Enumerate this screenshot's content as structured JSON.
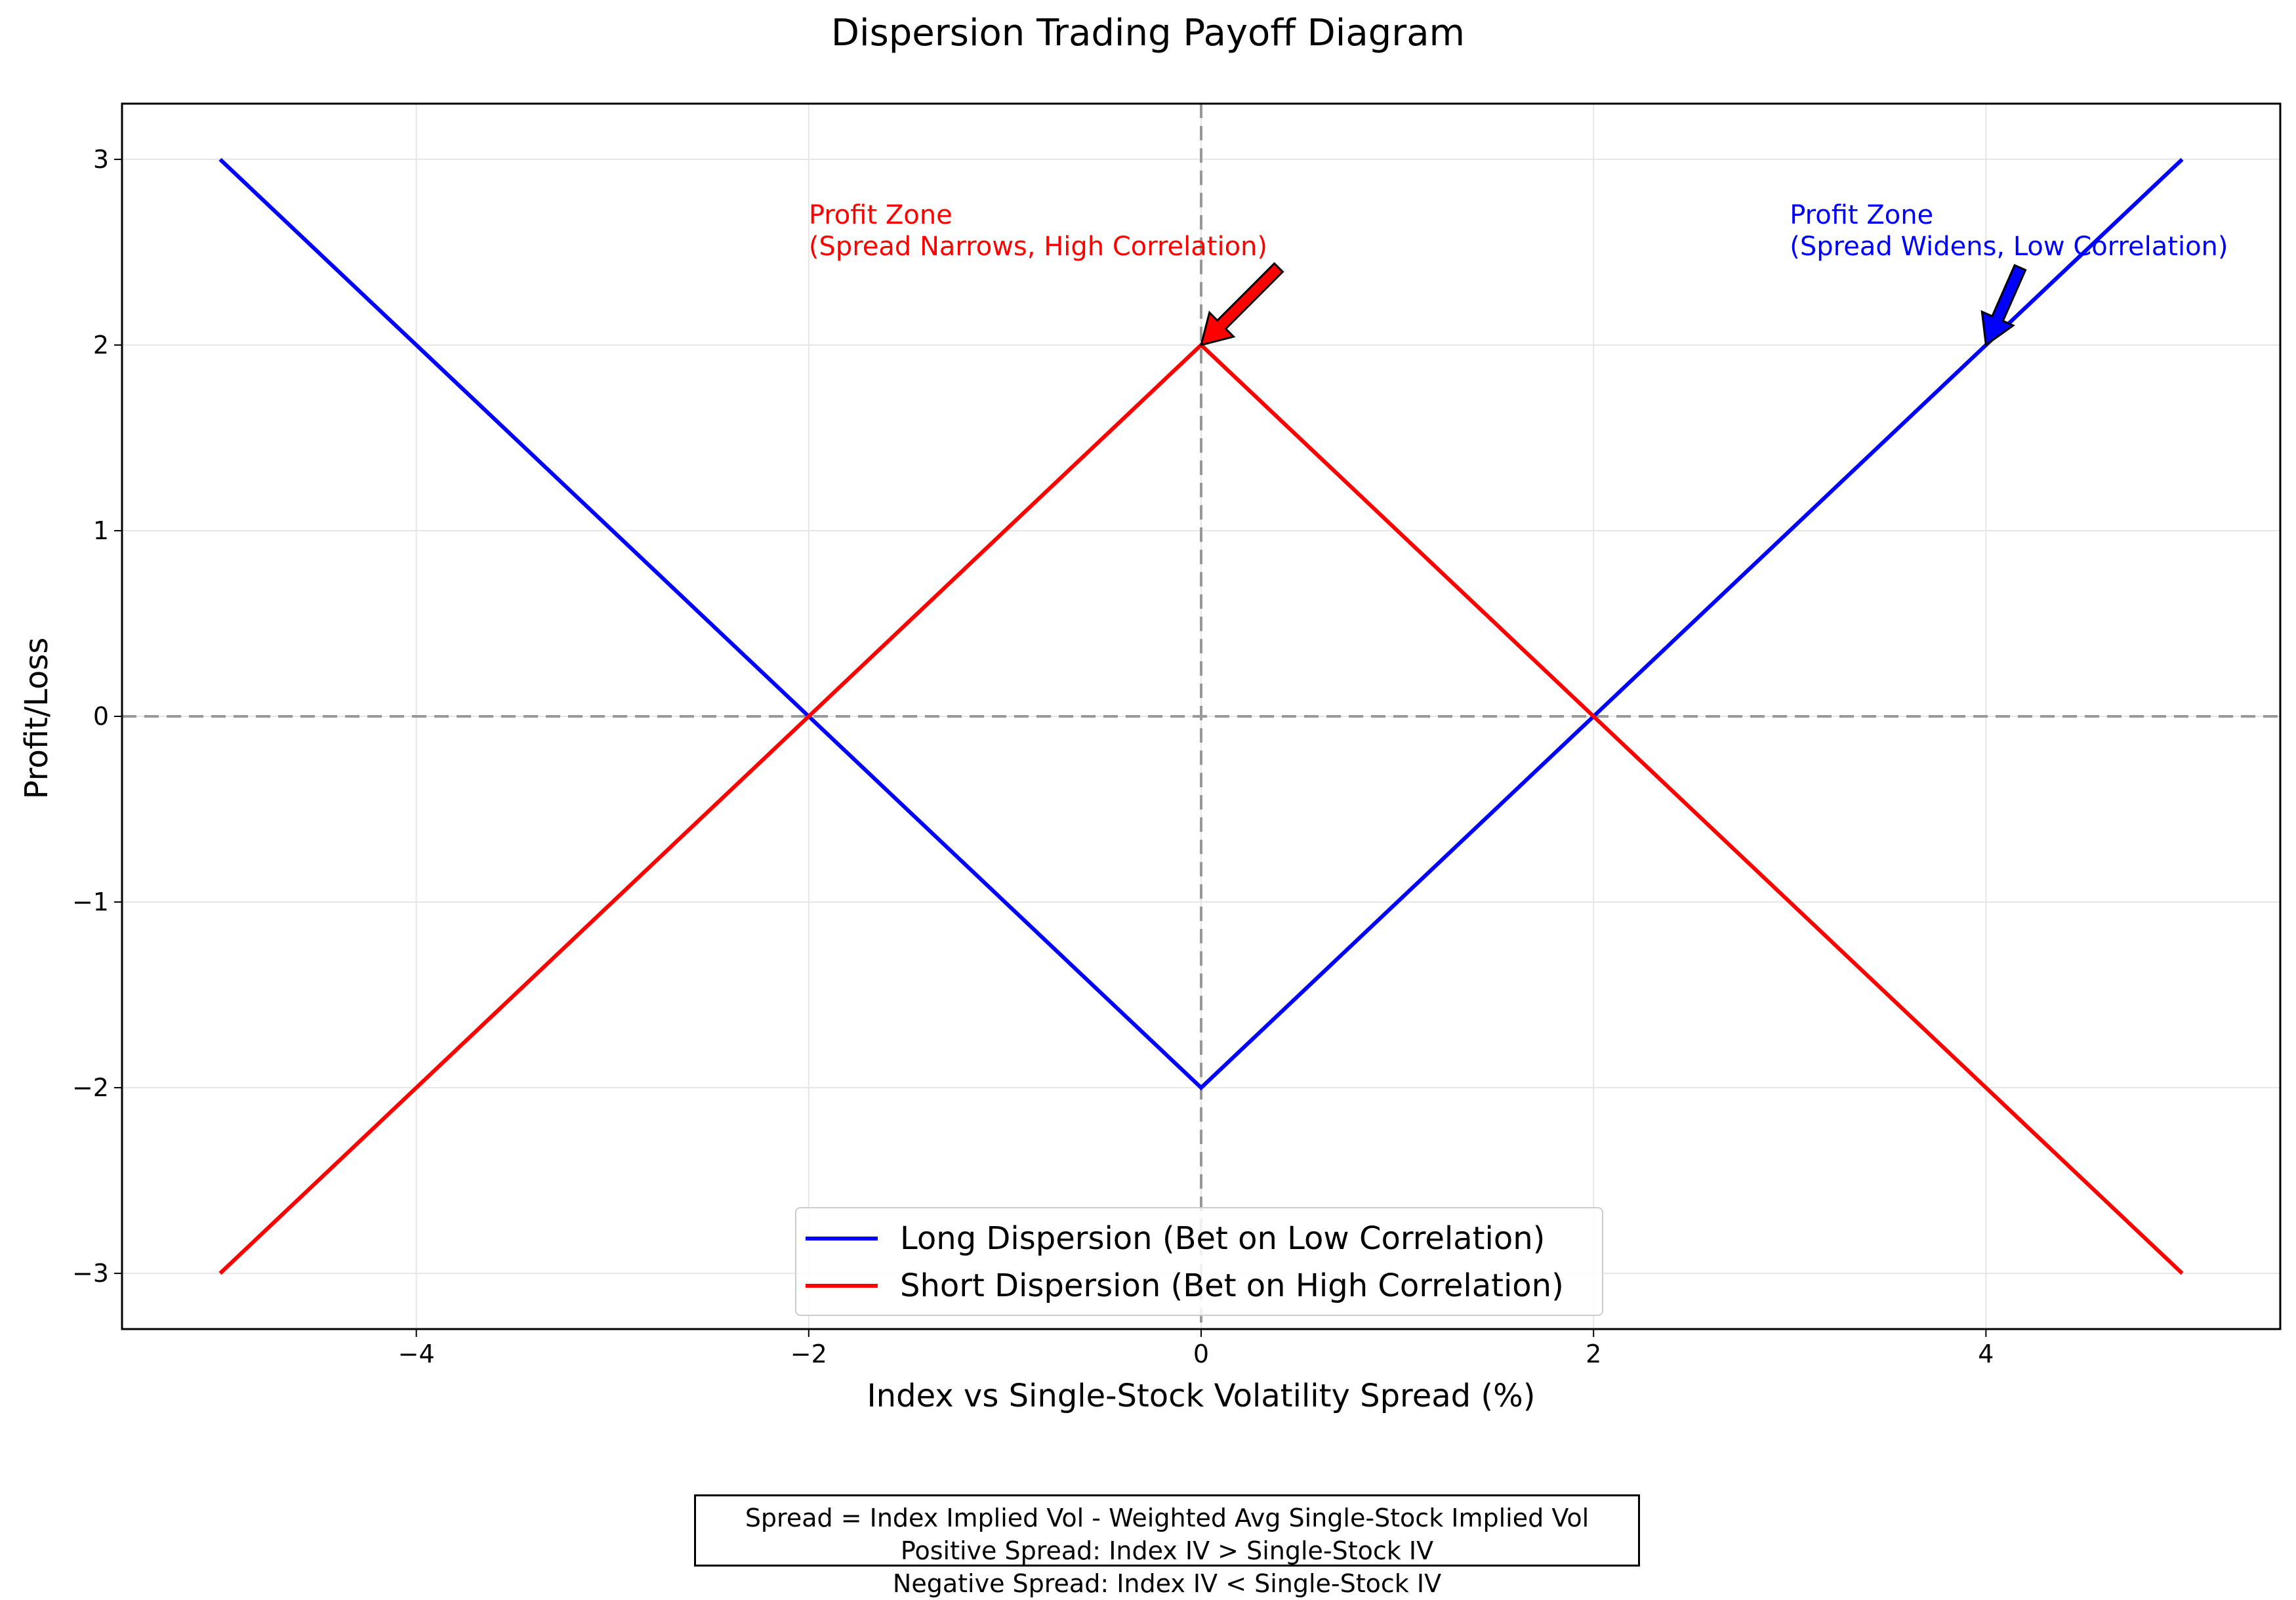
{
  "chart_data": {
    "type": "line",
    "title": "Dispersion Trading Payoff Diagram",
    "xlabel": "Index vs Single-Stock Volatility Spread (%)",
    "ylabel": "Profit/Loss",
    "xlim": [
      -5.5,
      5.5
    ],
    "ylim": [
      -3.3,
      3.3
    ],
    "xticks": [
      -4,
      -2,
      0,
      2,
      4
    ],
    "xtick_labels": [
      "−4",
      "−2",
      "0",
      "2",
      "4"
    ],
    "yticks": [
      -3,
      -2,
      -1,
      0,
      1,
      2,
      3
    ],
    "ytick_labels": [
      "−3",
      "−2",
      "−1",
      "0",
      "1",
      "2",
      "3"
    ],
    "grid": true,
    "legend_position": "bottom-center",
    "series": [
      {
        "name": "Long Dispersion (Bet on Low Correlation)",
        "color": "#0000ff",
        "x": [
          -5,
          -2,
          0,
          2,
          5
        ],
        "y": [
          3,
          0,
          -2,
          0,
          3
        ]
      },
      {
        "name": "Short Dispersion (Bet on High Correlation)",
        "color": "#ff0000",
        "x": [
          -5,
          -2,
          0,
          2,
          5
        ],
        "y": [
          -3,
          0,
          2,
          0,
          -3
        ]
      }
    ],
    "reference_lines": {
      "x": 0,
      "y": 0,
      "color": "#999999",
      "style": "dashed"
    },
    "annotations": [
      {
        "lines": [
          "Profit Zone",
          "(Spread Narrows, High Correlation)"
        ],
        "color": "#ff0000",
        "text_x": -2,
        "text_y": 2.6,
        "point_x": 0,
        "point_y": 2,
        "arrow_color": "#ff0000"
      },
      {
        "lines": [
          "Profit Zone",
          "(Spread Widens, Low Correlation)"
        ],
        "color": "#0000ff",
        "text_x": 3,
        "text_y": 2.6,
        "point_x": 4,
        "point_y": 2,
        "arrow_color": "#0000ff"
      }
    ],
    "notes": [
      "Spread = Index Implied Vol - Weighted Avg Single-Stock Implied Vol",
      "Positive Spread: Index IV > Single-Stock IV",
      "Negative Spread: Index IV < Single-Stock IV"
    ]
  }
}
